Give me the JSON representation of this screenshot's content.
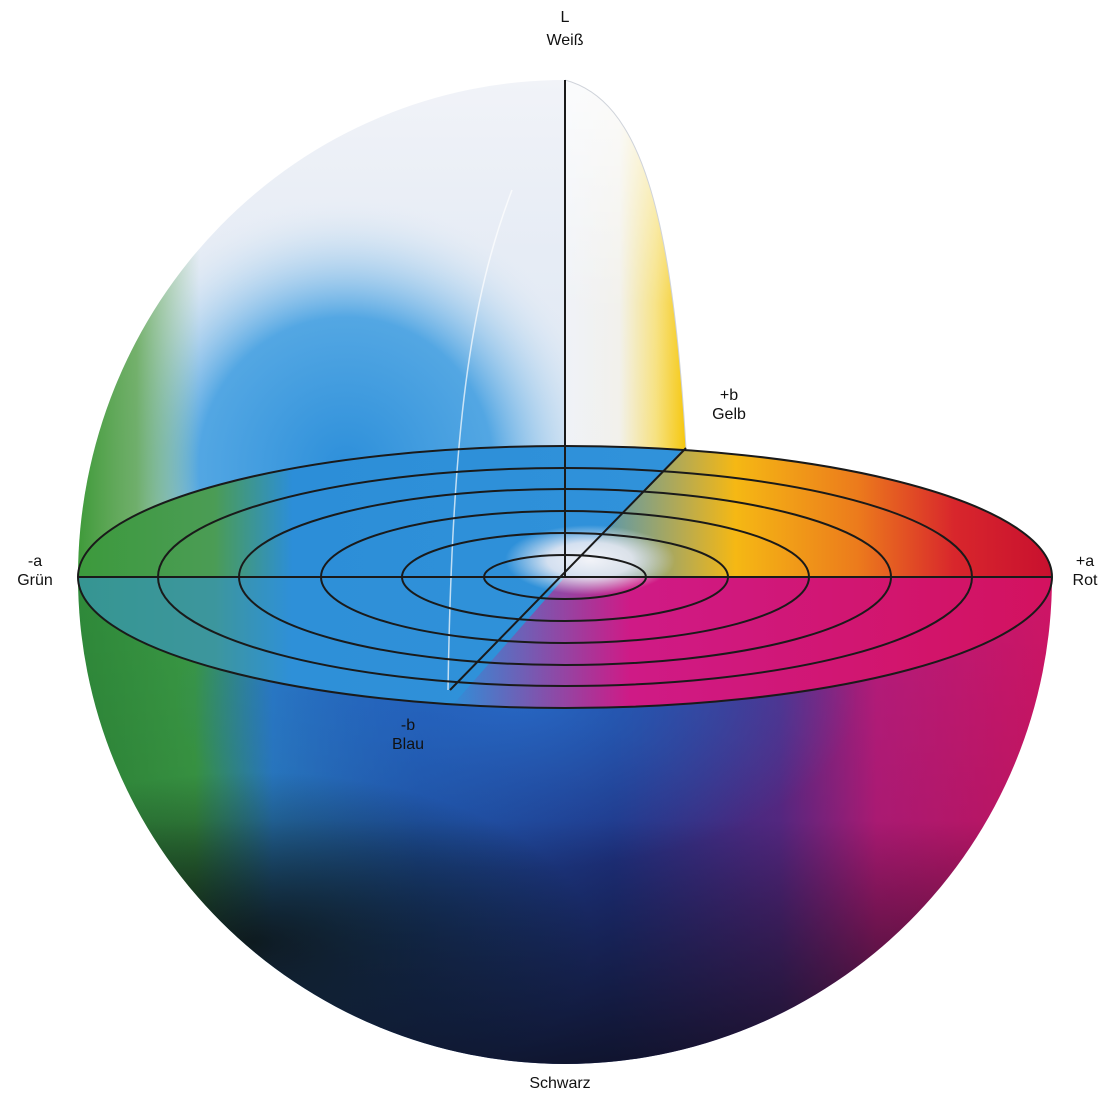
{
  "axes": {
    "l_axis": {
      "symbol": "L",
      "name": "Weiß"
    },
    "bottom": {
      "name": "Schwarz"
    },
    "plus_a": {
      "symbol": "+a",
      "name": "Rot"
    },
    "minus_a": {
      "symbol": "-a",
      "name": "Grün"
    },
    "plus_b": {
      "symbol": "+b",
      "name": "Gelb"
    },
    "minus_b": {
      "symbol": "-b",
      "name": "Blau"
    }
  },
  "concentric_rings": 6,
  "colors": {
    "white": "#f3f5f9",
    "yellow": "#f7c81a",
    "orange": "#f08a20",
    "red": "#cc1436",
    "magenta": "#c8177a",
    "blue": "#1d62b8",
    "light_blue": "#2f93db",
    "navy": "#1c2a80",
    "green": "#3e9a3c",
    "dark": "#141418",
    "line": "#1a1a1a"
  }
}
